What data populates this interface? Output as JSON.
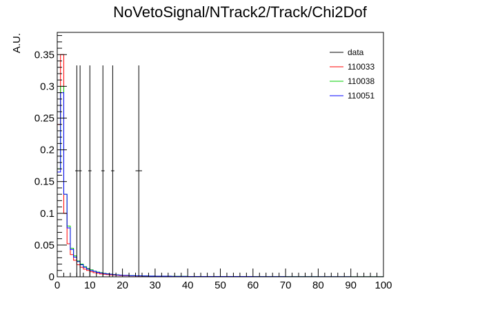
{
  "chart_data": {
    "type": "line",
    "title": "NoVetoSignal/NTrack2/Track/Chi2Dof",
    "xlabel": "",
    "ylabel": "A.U.",
    "xlim": [
      0,
      100
    ],
    "ylim": [
      0,
      0.385
    ],
    "x_ticks": [
      0,
      10,
      20,
      30,
      40,
      50,
      60,
      70,
      80,
      90,
      100
    ],
    "y_ticks": [
      0,
      0.05,
      0.1,
      0.15,
      0.2,
      0.25,
      0.3,
      0.35
    ],
    "x_tick_labels": [
      "0",
      "10",
      "20",
      "30",
      "40",
      "50",
      "60",
      "70",
      "80",
      "90",
      "100"
    ],
    "y_tick_labels": [
      "0",
      "0.05",
      "0.1",
      "0.15",
      "0.2",
      "0.25",
      "0.3",
      "0.35"
    ],
    "legend_position": "top-right",
    "bin_edges": [
      0,
      1,
      2,
      3,
      4,
      5,
      6,
      7,
      8,
      9,
      10,
      11,
      12,
      13,
      14,
      15,
      16,
      17,
      18,
      19,
      20,
      22,
      24,
      26,
      28,
      30,
      35,
      40,
      50,
      60,
      70,
      80,
      90,
      100
    ],
    "series": [
      {
        "name": "110033",
        "color": "#ff0000",
        "style": "step",
        "values": [
          0.24,
          0.35,
          0.1,
          0.052,
          0.035,
          0.026,
          0.019,
          0.015,
          0.012,
          0.01,
          0.008,
          0.0065,
          0.0055,
          0.0045,
          0.004,
          0.0035,
          0.003,
          0.0027,
          0.0024,
          0.0021,
          0.0018,
          0.0015,
          0.0013,
          0.0011,
          0.001,
          0.0008,
          0.0006,
          0.0005,
          0.0004,
          0.0003,
          0.0003,
          0.0002,
          0.0002
        ]
      },
      {
        "name": "110038",
        "color": "#00cc00",
        "style": "step",
        "values": [
          0.17,
          0.3,
          0.13,
          0.08,
          0.045,
          0.033,
          0.025,
          0.02,
          0.016,
          0.013,
          0.011,
          0.009,
          0.0075,
          0.0065,
          0.0055,
          0.0048,
          0.0042,
          0.0036,
          0.0031,
          0.0027,
          0.0023,
          0.0019,
          0.0016,
          0.0014,
          0.0012,
          0.001,
          0.0008,
          0.0006,
          0.0005,
          0.0004,
          0.0004,
          0.0003,
          0.0003
        ]
      },
      {
        "name": "110051",
        "color": "#0000ff",
        "style": "step",
        "values": [
          0.165,
          0.29,
          0.13,
          0.077,
          0.043,
          0.031,
          0.024,
          0.019,
          0.015,
          0.012,
          0.01,
          0.0085,
          0.007,
          0.006,
          0.0052,
          0.0045,
          0.004,
          0.0034,
          0.003,
          0.0026,
          0.0022,
          0.0018,
          0.0015,
          0.0013,
          0.0011,
          0.0009,
          0.0007,
          0.0006,
          0.0005,
          0.0004,
          0.0003,
          0.0003,
          0.0002
        ]
      }
    ],
    "data": {
      "name": "data",
      "color": "#000000",
      "style": "errorbar",
      "points": [
        {
          "x": 6,
          "y": 0.167,
          "ylow": 0,
          "yhigh": 0.333,
          "xlow": 5.5,
          "xhigh": 6.5
        },
        {
          "x": 7,
          "y": 0.167,
          "ylow": 0,
          "yhigh": 0.333,
          "xlow": 6.5,
          "xhigh": 7.5
        },
        {
          "x": 10,
          "y": 0.167,
          "ylow": 0,
          "yhigh": 0.333,
          "xlow": 9.5,
          "xhigh": 10.5
        },
        {
          "x": 14,
          "y": 0.167,
          "ylow": 0,
          "yhigh": 0.333,
          "xlow": 13.5,
          "xhigh": 14.5
        },
        {
          "x": 17,
          "y": 0.167,
          "ylow": 0,
          "yhigh": 0.333,
          "xlow": 16.5,
          "xhigh": 17.5
        },
        {
          "x": 25,
          "y": 0.167,
          "ylow": 0,
          "yhigh": 0.333,
          "xlow": 24,
          "xhigh": 26
        }
      ]
    },
    "legend": [
      {
        "label": "data",
        "color": "#000000"
      },
      {
        "label": "110033",
        "color": "#ff0000"
      },
      {
        "label": "110038",
        "color": "#00cc00"
      },
      {
        "label": "110051",
        "color": "#0000ff"
      }
    ]
  }
}
